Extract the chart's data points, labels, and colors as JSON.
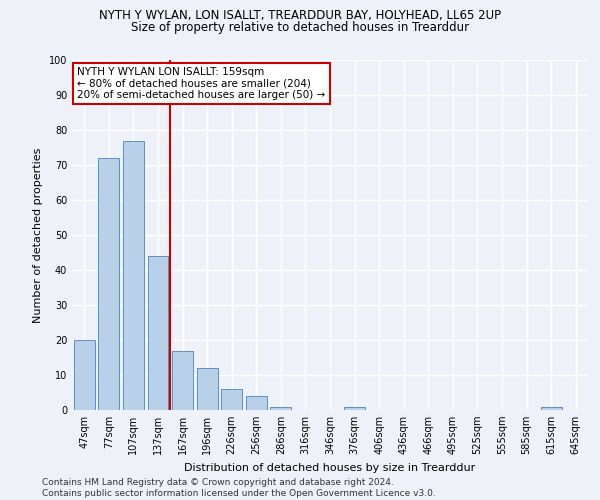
{
  "title": "NYTH Y WYLAN, LON ISALLT, TREARDDUR BAY, HOLYHEAD, LL65 2UP",
  "subtitle": "Size of property relative to detached houses in Trearddur",
  "xlabel": "Distribution of detached houses by size in Trearddur",
  "ylabel": "Number of detached properties",
  "categories": [
    "47sqm",
    "77sqm",
    "107sqm",
    "137sqm",
    "167sqm",
    "196sqm",
    "226sqm",
    "256sqm",
    "286sqm",
    "316sqm",
    "346sqm",
    "376sqm",
    "406sqm",
    "436sqm",
    "466sqm",
    "495sqm",
    "525sqm",
    "555sqm",
    "585sqm",
    "615sqm",
    "645sqm"
  ],
  "values": [
    20,
    72,
    77,
    44,
    17,
    12,
    6,
    4,
    1,
    0,
    0,
    1,
    0,
    0,
    0,
    0,
    0,
    0,
    0,
    1,
    0
  ],
  "bar_color": "#b8d0e8",
  "bar_edge_color": "#5a90c8",
  "vline_x_index": 4,
  "vline_color": "#cc0000",
  "annotation_text": "NYTH Y WYLAN LON ISALLT: 159sqm\n← 80% of detached houses are smaller (204)\n20% of semi-detached houses are larger (50) →",
  "annotation_box_color": "#ffffff",
  "annotation_box_edge": "#cc0000",
  "ylim": [
    0,
    100
  ],
  "yticks": [
    0,
    10,
    20,
    30,
    40,
    50,
    60,
    70,
    80,
    90,
    100
  ],
  "footnote": "Contains HM Land Registry data © Crown copyright and database right 2024.\nContains public sector information licensed under the Open Government Licence v3.0.",
  "bg_color": "#eef2f8",
  "grid_color": "#ffffff",
  "title_fontsize": 8.5,
  "subtitle_fontsize": 8.5,
  "label_fontsize": 8.0,
  "tick_fontsize": 7.0,
  "annotation_fontsize": 7.5,
  "footnote_fontsize": 6.5
}
